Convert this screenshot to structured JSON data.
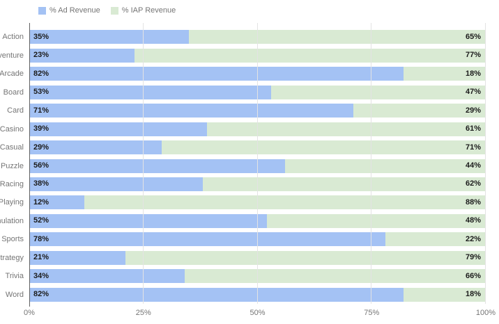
{
  "chart_data": {
    "type": "bar",
    "orientation": "horizontal",
    "stacked": true,
    "title": "",
    "categories": [
      "Action",
      "Adventure",
      "Arcade",
      "Board",
      "Card",
      "Casino",
      "Casual",
      "Puzzle",
      "Racing",
      "Role Playing",
      "Simulation",
      "Sports",
      "Strategy",
      "Trivia",
      "Word"
    ],
    "series": [
      {
        "name": "% Ad Revenue",
        "color": "#a4c2f4",
        "values": [
          35,
          23,
          82,
          53,
          71,
          39,
          29,
          56,
          38,
          12,
          52,
          78,
          21,
          34,
          82
        ]
      },
      {
        "name": "% IAP Revenue",
        "color": "#d9ead3",
        "values": [
          65,
          77,
          18,
          47,
          29,
          61,
          71,
          44,
          62,
          88,
          48,
          22,
          79,
          66,
          18
        ]
      }
    ],
    "value_label_suffix": "%",
    "x_ticks": [
      "0%",
      "25%",
      "50%",
      "75%",
      "100%"
    ],
    "xlim": [
      0,
      100
    ],
    "grid": "vertical-gridlines-over-bars",
    "legend_position": "top-left",
    "colors": {
      "background": "#ffffff",
      "gridline": "#e3e3e3",
      "axis_line": "#616161",
      "axis_text": "#757575",
      "category_text": "#757575",
      "legend_text": "#757575",
      "value_text": "#1b1b1b"
    }
  }
}
